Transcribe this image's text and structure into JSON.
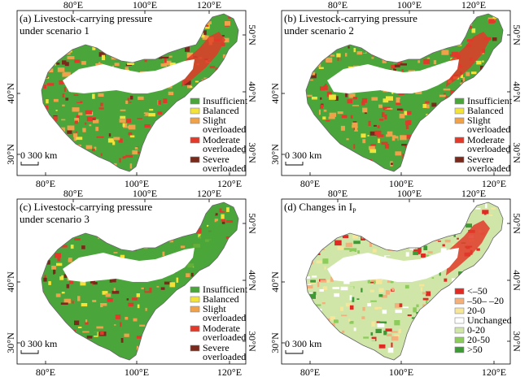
{
  "colors": {
    "insufficient": "#4aa63a",
    "balanced": "#f2e23a",
    "slight": "#f0a24a",
    "moderate": "#e23a2a",
    "severe": "#7a2a1a",
    "lt_neg50": "#e02a24",
    "neg50_neg20": "#f4b07a",
    "c20_0": "#f6e69a",
    "unchanged": "#ffffff",
    "c0_20": "#cfe6a8",
    "c20_50": "#8ccc5a",
    "gt50": "#3e9a34"
  },
  "panels": [
    {
      "title1": "(a) Livestock-carrying pressure",
      "title2": "under scenario 1",
      "scalebar": "0 300 km",
      "lon_ticks": [
        "80°E",
        "100°E",
        "120°E"
      ],
      "lat_ticks": [
        "30°N",
        "40°N",
        "50°N"
      ],
      "legend": [
        {
          "lines": [
            "Insufficient"
          ],
          "color_key": "insufficient"
        },
        {
          "lines": [
            "Balanced"
          ],
          "color_key": "balanced"
        },
        {
          "lines": [
            "Slight",
            "overloaded"
          ],
          "color_key": "slight"
        },
        {
          "lines": [
            "Moderate",
            "overloaded"
          ],
          "color_key": "moderate"
        },
        {
          "lines": [
            "Severe",
            "overloaded"
          ],
          "color_key": "severe"
        }
      ]
    },
    {
      "title1": "(b) Livestock-carrying pressure",
      "title2": "under scenario 2",
      "scalebar": "0 300 km",
      "lon_ticks": [
        "80°E",
        "100°E",
        "120°E"
      ],
      "lat_ticks": [
        "30°N",
        "40°N",
        "50°N"
      ],
      "legend": [
        {
          "lines": [
            "Insufficient"
          ],
          "color_key": "insufficient"
        },
        {
          "lines": [
            "Balanced"
          ],
          "color_key": "balanced"
        },
        {
          "lines": [
            "Slight",
            "overloaded"
          ],
          "color_key": "slight"
        },
        {
          "lines": [
            "Moderate",
            "overloaded"
          ],
          "color_key": "moderate"
        },
        {
          "lines": [
            "Severe",
            "overloaded"
          ],
          "color_key": "severe"
        }
      ]
    },
    {
      "title1": "(c) Livestock-carrying pressure",
      "title2": "under scenario 3",
      "scalebar": "0 300 km",
      "lon_ticks": [
        "80°E",
        "100°E",
        "120°E"
      ],
      "lat_ticks": [
        "30°N",
        "40°N",
        "50°N"
      ],
      "legend": [
        {
          "lines": [
            "Insufficient"
          ],
          "color_key": "insufficient"
        },
        {
          "lines": [
            "Balanced"
          ],
          "color_key": "balanced"
        },
        {
          "lines": [
            "Slight",
            "overloaded"
          ],
          "color_key": "slight"
        },
        {
          "lines": [
            "Moderate",
            "overloaded"
          ],
          "color_key": "moderate"
        },
        {
          "lines": [
            "Severe",
            "overloaded"
          ],
          "color_key": "severe"
        }
      ]
    },
    {
      "title1": "(d) Changes in I",
      "title1_sub": "P",
      "title2": "",
      "scalebar": "0 300 km",
      "lon_ticks": [
        "80°E",
        "100°E",
        "120°E"
      ],
      "lat_ticks": [
        "30°N",
        "40°N",
        "50°N"
      ],
      "legend": [
        {
          "lines": [
            "<–50"
          ],
          "color_key": "lt_neg50"
        },
        {
          "lines": [
            "–50– –20"
          ],
          "color_key": "neg50_neg20"
        },
        {
          "lines": [
            "20-0"
          ],
          "color_key": "c20_0"
        },
        {
          "lines": [
            "Unchanged"
          ],
          "color_key": "unchanged"
        },
        {
          "lines": [
            "0-20"
          ],
          "color_key": "c0_20"
        },
        {
          "lines": [
            "20-50"
          ],
          "color_key": "c20_50"
        },
        {
          "lines": [
            ">50"
          ],
          "color_key": "gt50"
        }
      ]
    }
  ]
}
